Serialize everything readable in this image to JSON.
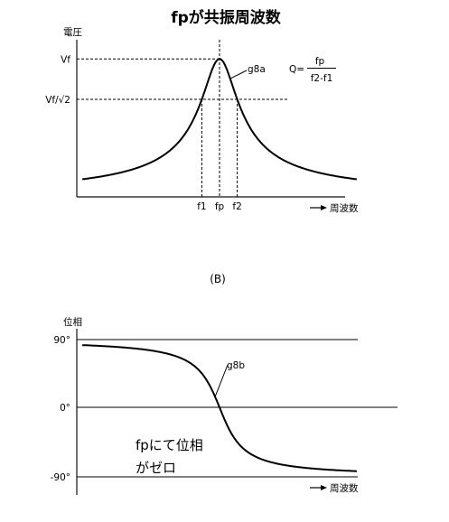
{
  "page": {
    "title": "fpが共振周波数",
    "sub_label": "(B)"
  },
  "chart_data": [
    {
      "type": "line",
      "ylabel": "電圧",
      "xlabel": "周波数",
      "x_range": [
        -1.55,
        1.55
      ],
      "y_range": [
        0,
        1.1
      ],
      "series": [
        {
          "name": "g8a",
          "resonance": {
            "center": 0,
            "q_half_width": 0.2,
            "peak": 1.0
          }
        }
      ],
      "y_ticks": [
        {
          "value": 1.0,
          "label": "Vf"
        },
        {
          "value": 0.707,
          "label": "Vf/√2"
        }
      ],
      "x_ticks": [
        {
          "value": -0.2,
          "label": "f1"
        },
        {
          "value": 0.0,
          "label": "fp"
        },
        {
          "value": 0.2,
          "label": "f2"
        }
      ],
      "formula": {
        "lhs": "Q=",
        "numerator": "fp",
        "denominator": "f2-f1"
      }
    },
    {
      "type": "line",
      "ylabel": "位相",
      "xlabel": "周波数",
      "x_range": [
        -1.55,
        1.55
      ],
      "y_range": [
        -90,
        90
      ],
      "series": [
        {
          "name": "g8b",
          "phase": {
            "center": 0,
            "q_half_width": 0.2
          }
        }
      ],
      "y_ticks": [
        {
          "value": 90,
          "label": "90°"
        },
        {
          "value": 0,
          "label": "0°"
        },
        {
          "value": -90,
          "label": "-90°"
        }
      ],
      "annotation": {
        "line1": "fpにて位相",
        "line2": "がゼロ"
      }
    }
  ]
}
